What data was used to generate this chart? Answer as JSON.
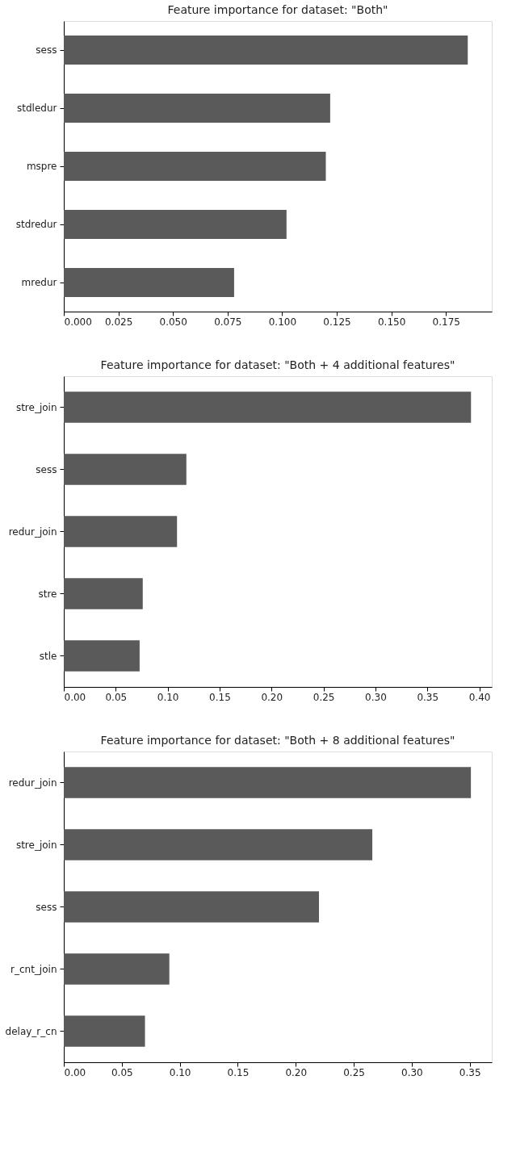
{
  "chart_data": [
    {
      "type": "bar",
      "orientation": "horizontal",
      "title": "Feature importance for dataset: \"Both\"",
      "categories": [
        "sess",
        "stdledur",
        "mspre",
        "stdredur",
        "mredur"
      ],
      "values": [
        0.185,
        0.122,
        0.12,
        0.102,
        0.078
      ],
      "color": "#5a5a5a",
      "xlim": [
        0,
        0.196
      ],
      "xticks": [
        {
          "value": 0,
          "label": "0.000"
        },
        {
          "value": 0.025,
          "label": "0.025"
        },
        {
          "value": 0.05,
          "label": "0.050"
        },
        {
          "value": 0.075,
          "label": "0.075"
        },
        {
          "value": 0.1,
          "label": "0.100"
        },
        {
          "value": 0.125,
          "label": "0.125"
        },
        {
          "value": 0.15,
          "label": "0.150"
        },
        {
          "value": 0.175,
          "label": "0.175"
        }
      ]
    },
    {
      "type": "bar",
      "orientation": "horizontal",
      "title": "Feature importance for dataset: \"Both + 4 additional features\"",
      "categories": [
        "stre_join",
        "sess",
        "redur_join",
        "stre",
        "stle"
      ],
      "values": [
        0.392,
        0.118,
        0.109,
        0.076,
        0.073
      ],
      "color": "#5a5a5a",
      "xlim": [
        0,
        0.412
      ],
      "xticks": [
        {
          "value": 0,
          "label": "0.00"
        },
        0.05,
        {
          "value": 0.1,
          "label": "0.10"
        },
        0.15,
        {
          "value": 0.2,
          "label": "0.20"
        },
        0.25,
        {
          "value": 0.3,
          "label": "0.30"
        },
        0.35,
        {
          "value": 0.4,
          "label": "0.40"
        }
      ]
    },
    {
      "type": "bar",
      "orientation": "horizontal",
      "title": "Feature importance for dataset: \"Both + 8 additional features\"",
      "categories": [
        "redur_join",
        "stre_join",
        "sess",
        "r_cnt_join",
        "delay_r_cn"
      ],
      "values": [
        0.351,
        0.266,
        0.22,
        0.091,
        0.07
      ],
      "color": "#5a5a5a",
      "xlim": [
        0,
        0.369
      ],
      "xticks": [
        {
          "value": 0,
          "label": "0.00"
        },
        0.05,
        {
          "value": 0.1,
          "label": "0.10"
        },
        0.15,
        {
          "value": 0.2,
          "label": "0.20"
        },
        0.25,
        {
          "value": 0.3,
          "label": "0.30"
        },
        0.35
      ]
    }
  ]
}
